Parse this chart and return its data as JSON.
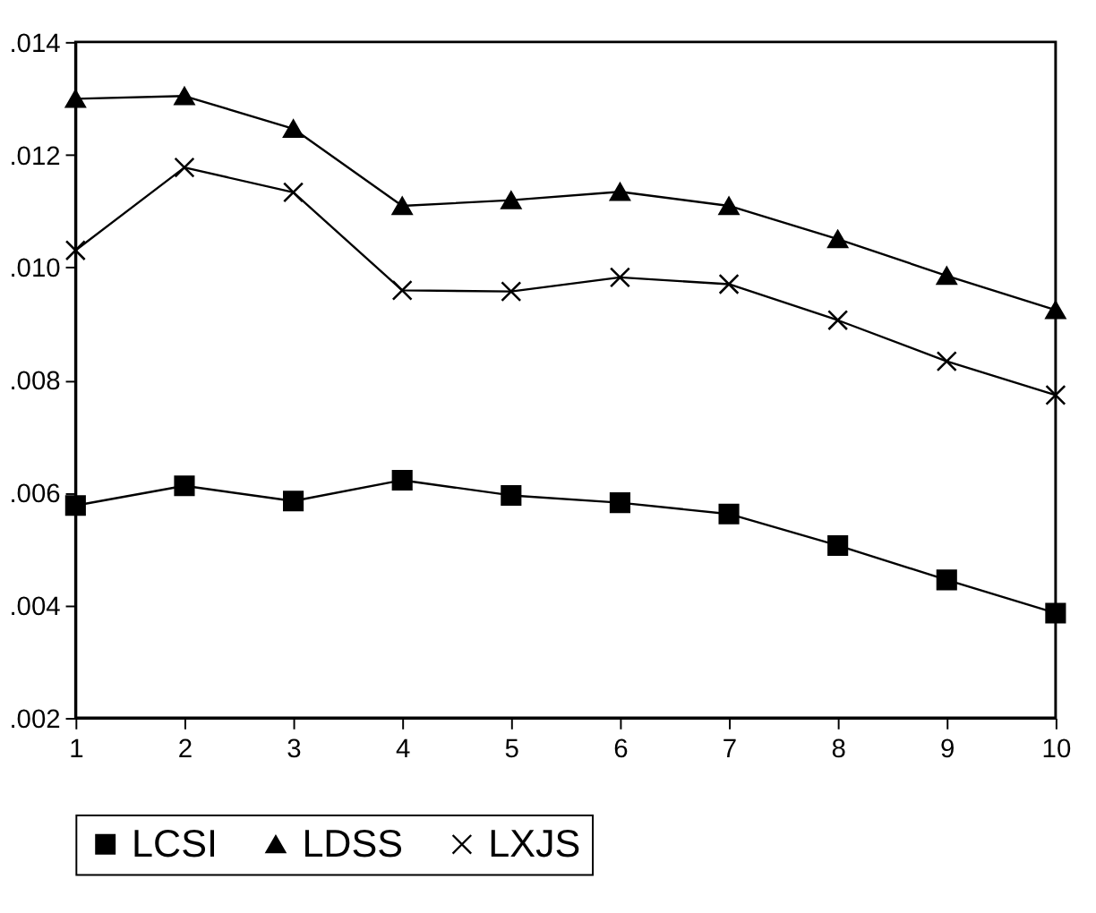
{
  "chart_data": {
    "type": "line",
    "x": [
      1,
      2,
      3,
      4,
      5,
      6,
      7,
      8,
      9,
      10
    ],
    "series": [
      {
        "name": "LCSI",
        "color": "#000000",
        "marker": "square",
        "values": [
          0.00577,
          0.00612,
          0.00585,
          0.00622,
          0.00595,
          0.00582,
          0.00562,
          0.00506,
          0.00445,
          0.00386
        ]
      },
      {
        "name": "LDSS",
        "color": "#000000",
        "marker": "triangle",
        "values": [
          0.01299,
          0.01304,
          0.01246,
          0.01109,
          0.01119,
          0.01134,
          0.01109,
          0.0105,
          0.00985,
          0.00924
        ]
      },
      {
        "name": "LXJS",
        "color": "#000000",
        "marker": "cross",
        "values": [
          0.0103,
          0.01177,
          0.01133,
          0.00959,
          0.00957,
          0.00982,
          0.0097,
          0.00906,
          0.00833,
          0.00773
        ]
      }
    ],
    "xlim": [
      1,
      10
    ],
    "xticks": [
      1,
      2,
      3,
      4,
      5,
      6,
      7,
      8,
      9,
      10
    ],
    "ylim": [
      0.002,
      0.014
    ],
    "yticks": [
      {
        "value": 0.002,
        "label": ".002"
      },
      {
        "value": 0.004,
        "label": ".004"
      },
      {
        "value": 0.006,
        "label": ".006"
      },
      {
        "value": 0.008,
        "label": ".008"
      },
      {
        "value": 0.01,
        "label": ".010"
      },
      {
        "value": 0.012,
        "label": ".012"
      },
      {
        "value": 0.014,
        "label": ".014"
      }
    ],
    "grid": false,
    "legend": "bottom",
    "line_style": "solid"
  }
}
